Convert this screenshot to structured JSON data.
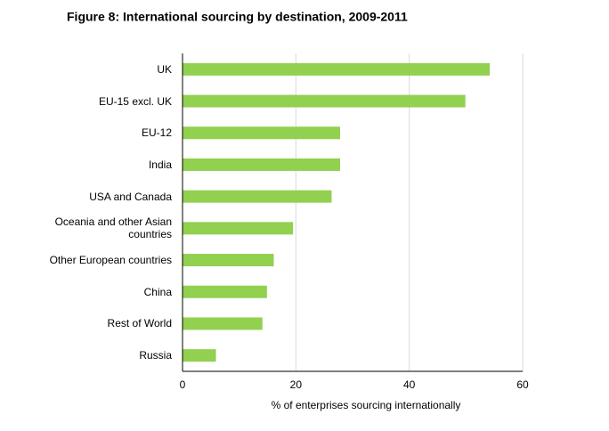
{
  "chart_data": {
    "type": "bar",
    "orientation": "horizontal",
    "title": "Figure 8: International sourcing by destination, 2009-2011",
    "x_label": "% of enterprises sourcing internationally",
    "categories": [
      "UK",
      "EU-15 excl. UK",
      "EU-12",
      "India",
      "USA and Canada",
      "Oceania and other Asian countries",
      "Other European countries",
      "China",
      "Rest of World",
      "Russia"
    ],
    "values": [
      54.2,
      49.9,
      27.8,
      27.8,
      26.3,
      19.5,
      16.1,
      14.9,
      14.1,
      5.9
    ],
    "color": "#92d050",
    "xlim": [
      0,
      60
    ],
    "xticks": [
      0,
      20,
      40,
      60
    ],
    "grid": true
  }
}
